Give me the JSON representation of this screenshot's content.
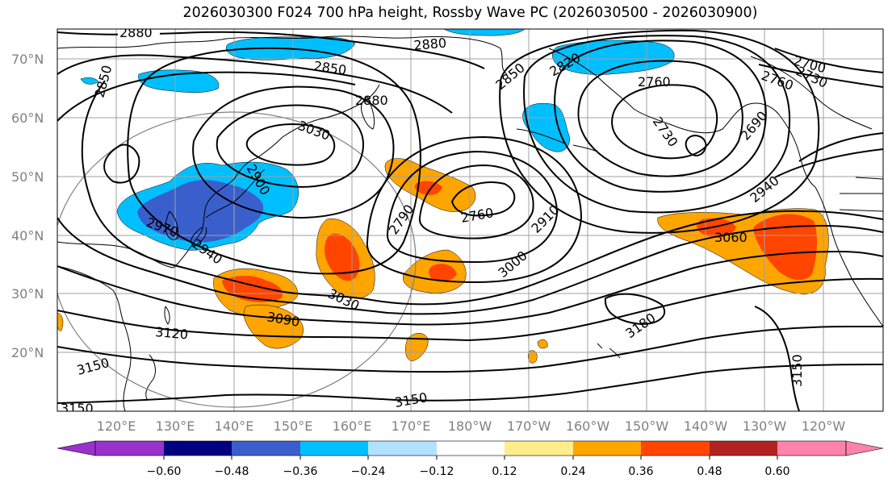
{
  "title": "2026030300 F024 700 hPa height, Rossby Wave PC (2026030500 - 2026030900)",
  "lat_labels": [
    "70°N",
    "60°N",
    "50°N",
    "40°N",
    "30°N",
    "20°N"
  ],
  "lon_labels": [
    "120°E",
    "130°E",
    "140°E",
    "150°E",
    "160°E",
    "170°E",
    "180°W",
    "170°W",
    "160°W",
    "150°W",
    "140°W",
    "130°W",
    "120°W"
  ],
  "contour_labels": [
    "2880",
    "2880",
    "2850",
    "2850",
    "2880",
    "3030",
    "2820",
    "2850",
    "2760",
    "2700",
    "2730",
    "2760",
    "2730",
    "2690",
    "2900",
    "2970",
    "2940",
    "2790",
    "2760",
    "2910",
    "3000",
    "3030",
    "3090",
    "3120",
    "3150",
    "3150",
    "3150",
    "3060",
    "2940",
    "3180",
    "3150"
  ],
  "colorbar": {
    "ticks": [
      "−0.60",
      "−0.48",
      "−0.36",
      "−0.24",
      "−0.12",
      "0.12",
      "0.24",
      "0.36",
      "0.48",
      "0.60"
    ],
    "colors": [
      "#9932cc",
      "#000080",
      "#3a5fcd",
      "#00bfff",
      "#b0e2ff",
      "#ffffff",
      "#ffec8b",
      "#ffa500",
      "#ff4500",
      "#b22222",
      "#ff82ab"
    ]
  },
  "legend_colors": {
    "neg_strong": "#3a5fcd",
    "neg_mid": "#00bfff",
    "neg_weak": "#b0e2ff",
    "pos_weak": "#ffec8b",
    "pos_mid": "#ffa500",
    "pos_strong": "#ff4500"
  }
}
